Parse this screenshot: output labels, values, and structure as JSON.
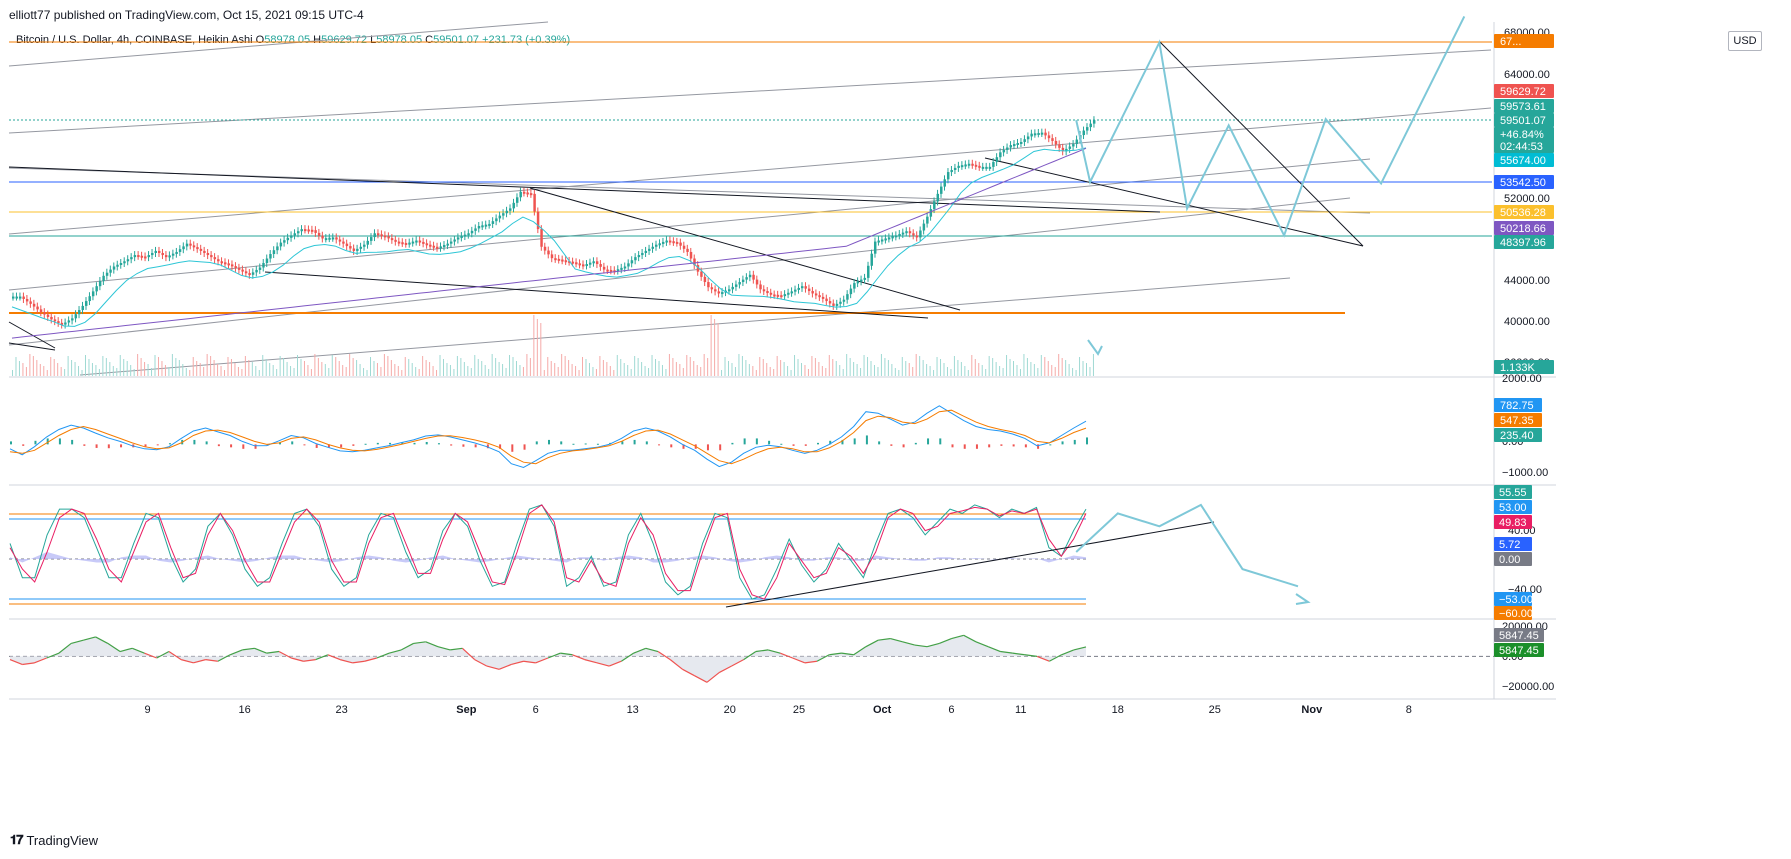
{
  "header": {
    "publisher": "elliott77 published on TradingView.com, Oct 15, 2021 09:15 UTC-4"
  },
  "legend": {
    "symbol": "Bitcoin / U.S. Dollar, 4h, COINBASE, Heikin Ashi",
    "o_label": "O",
    "o": "58978.05",
    "h_label": "H",
    "h": "59629.72",
    "l_label": "L",
    "l": "58978.05",
    "c_label": "C",
    "c": "59501.07",
    "change": "+231.73 (+0.39%)"
  },
  "currency_button": "USD",
  "footer": {
    "brand": "TradingView"
  },
  "colors": {
    "up": "#26a69a",
    "down": "#ef5350",
    "path": "#7ec8d8",
    "ma_cyan": "#2ec6d6",
    "ma_purple": "#7e57c2",
    "orange": "#f57c00",
    "blue": "#2962ff"
  },
  "chart_data": {
    "type": "candlestick",
    "x_axis_labels": [
      "9",
      "16",
      "23",
      "Sep",
      "6",
      "13",
      "20",
      "25",
      "Oct",
      "6",
      "11",
      "18",
      "25",
      "Nov",
      "8"
    ],
    "price_axis_ticks": [
      "68000.00",
      "64000.00",
      "52000.00",
      "44000.00",
      "40000.00",
      "36000.00"
    ],
    "price_labels": [
      {
        "text": "67...",
        "color": "#f57c00"
      },
      {
        "text": "59629.72",
        "color": "#ef5350"
      },
      {
        "text": "59573.61",
        "color": "#26a69a"
      },
      {
        "text": "59501.07",
        "color": "#26a69a"
      },
      {
        "text": "+46.84%",
        "color": "#26a69a"
      },
      {
        "text": "02:44:53",
        "color": "#26a69a"
      },
      {
        "text": "55674.00",
        "color": "#00bcd4"
      },
      {
        "text": "53542.50",
        "color": "#2962ff"
      },
      {
        "text": "50536.28",
        "color": "#fbc02d"
      },
      {
        "text": "50218.66",
        "color": "#7e57c2"
      },
      {
        "text": "48397.96",
        "color": "#26a69a"
      },
      {
        "text": "1.133K",
        "color": "#26a69a"
      }
    ],
    "price_series": [
      42.5,
      41.8,
      41.0,
      40.3,
      39.8,
      40.4,
      41.6,
      43.0,
      44.5,
      45.4,
      45.9,
      46.5,
      46.3,
      46.9,
      46.3,
      46.8,
      47.6,
      47.1,
      46.5,
      45.9,
      45.6,
      45.1,
      44.6,
      45.3,
      46.6,
      47.7,
      48.4,
      49.0,
      48.9,
      48.1,
      48.2,
      47.6,
      46.9,
      47.5,
      48.6,
      48.3,
      47.8,
      47.6,
      47.9,
      47.5,
      47.2,
      47.6,
      48.2,
      48.6,
      49.3,
      49.5,
      50.3,
      51.0,
      52.6,
      52.4,
      47.3,
      46.2,
      46.0,
      45.8,
      45.5,
      45.9,
      45.1,
      45.0,
      45.4,
      46.3,
      46.9,
      47.5,
      47.9,
      47.7,
      46.8,
      44.9,
      43.4,
      42.8,
      43.2,
      43.9,
      44.6,
      43.2,
      42.7,
      42.6,
      43.0,
      43.5,
      42.8,
      42.3,
      41.6,
      42.2,
      43.8,
      44.3,
      47.8,
      48.1,
      48.4,
      48.8,
      48.2,
      50.2,
      52.4,
      54.5,
      55.1,
      55.3,
      55.0,
      55.0,
      56.4,
      57.1,
      57.4,
      58.2,
      58.3,
      57.5,
      56.5,
      57.2,
      58.5,
      59.5
    ],
    "forecast_path_price": [
      {
        "t": "2021-10-15",
        "p": 59501
      },
      {
        "t": "2021-10-16",
        "p": 53542
      },
      {
        "t": "2021-10-21",
        "p": 67000
      },
      {
        "t": "2021-10-23",
        "p": 51000
      },
      {
        "t": "2021-10-26",
        "p": 59000
      },
      {
        "t": "2021-10-30",
        "p": 48400
      },
      {
        "t": "2021-11-02",
        "p": 59600
      },
      {
        "t": "2021-11-06",
        "p": 53400
      },
      {
        "t": "2021-11-12",
        "p": 69500
      }
    ],
    "macd": {
      "axis_ticks": [
        "2000.00",
        "0.00",
        "−1000.00"
      ],
      "labels": [
        {
          "text": "782.75",
          "color": "#2196f3"
        },
        {
          "text": "547.35",
          "color": "#f57c00"
        },
        {
          "text": "235.40",
          "color": "#26a69a"
        }
      ],
      "macd_line": [
        -150,
        -350,
        -80,
        250,
        500,
        650,
        550,
        380,
        220,
        100,
        -50,
        -150,
        -180,
        -80,
        200,
        450,
        550,
        420,
        300,
        100,
        -50,
        -40,
        120,
        300,
        220,
        30,
        -100,
        -220,
        -250,
        -200,
        -120,
        -40,
        60,
        150,
        280,
        320,
        250,
        150,
        50,
        -80,
        -250,
        -650,
        -780,
        -550,
        -300,
        -200,
        -200,
        -150,
        -100,
        0,
        200,
        450,
        550,
        450,
        250,
        0,
        -200,
        -500,
        -750,
        -600,
        -300,
        -100,
        -30,
        -80,
        -200,
        -300,
        -200,
        0,
        250,
        600,
        1100,
        1050,
        850,
        650,
        750,
        1050,
        1300,
        1050,
        800,
        600,
        500,
        450,
        350,
        200,
        -50,
        50,
        300,
        550,
        780
      ],
      "signal_line": [
        -250,
        -300,
        -200,
        50,
        300,
        500,
        600,
        500,
        350,
        200,
        50,
        -80,
        -150,
        -120,
        50,
        300,
        450,
        480,
        400,
        250,
        100,
        0,
        50,
        200,
        250,
        150,
        0,
        -120,
        -200,
        -220,
        -170,
        -90,
        0,
        100,
        200,
        280,
        290,
        230,
        150,
        50,
        -100,
        -400,
        -600,
        -650,
        -450,
        -300,
        -220,
        -180,
        -120,
        -50,
        100,
        300,
        450,
        480,
        350,
        150,
        -50,
        -300,
        -550,
        -650,
        -500,
        -300,
        -150,
        -100,
        -150,
        -250,
        -250,
        -120,
        100,
        400,
        800,
        950,
        900,
        750,
        700,
        850,
        1100,
        1150,
        950,
        750,
        600,
        500,
        420,
        300,
        100,
        50,
        200,
        400,
        547
      ]
    },
    "stoch_rsi": {
      "axis_ticks": [
        "40.00",
        "0.00",
        "−40.00"
      ],
      "labels": [
        {
          "text": "55.55",
          "color": "#26a69a"
        },
        {
          "text": "53.00",
          "color": "#2196f3"
        },
        {
          "text": "49.83",
          "color": "#e91e63"
        },
        {
          "text": "5.72",
          "color": "#2962ff"
        },
        {
          "text": "0.00",
          "color": "#787b86"
        },
        {
          "text": "−53.00",
          "color": "#2196f3"
        },
        {
          "text": "−60.00",
          "color": "#f57c00"
        }
      ],
      "k_line": [
        10,
        -30,
        -30,
        20,
        50,
        50,
        40,
        5,
        -30,
        -30,
        10,
        45,
        40,
        -5,
        -35,
        -20,
        30,
        45,
        20,
        -20,
        -40,
        -30,
        10,
        45,
        50,
        30,
        -20,
        -40,
        -30,
        20,
        45,
        40,
        0,
        -30,
        -20,
        25,
        45,
        30,
        -10,
        -40,
        -35,
        10,
        50,
        55,
        30,
        -40,
        -30,
        -5,
        -40,
        -35,
        20,
        45,
        10,
        -35,
        -50,
        -40,
        10,
        45,
        40,
        -30,
        -55,
        -50,
        -20,
        15,
        -15,
        -35,
        -20,
        10,
        -10,
        -30,
        10,
        45,
        50,
        40,
        20,
        35,
        50,
        45,
        55,
        50,
        40,
        50,
        45,
        52,
        5,
        -5,
        25,
        50
      ],
      "d_line": [
        5,
        -20,
        -35,
        0,
        40,
        50,
        45,
        15,
        -20,
        -35,
        0,
        35,
        45,
        5,
        -30,
        -25,
        20,
        45,
        25,
        -10,
        -35,
        -35,
        0,
        35,
        50,
        35,
        -10,
        -35,
        -35,
        10,
        40,
        45,
        10,
        -25,
        -25,
        15,
        45,
        35,
        0,
        -35,
        -38,
        0,
        45,
        55,
        35,
        -30,
        -35,
        -10,
        -35,
        -40,
        10,
        40,
        20,
        -25,
        -45,
        -45,
        0,
        40,
        45,
        -20,
        -50,
        -55,
        -30,
        10,
        -10,
        -30,
        -25,
        5,
        -5,
        -25,
        0,
        40,
        50,
        45,
        25,
        30,
        45,
        48,
        52,
        50,
        42,
        48,
        45,
        50,
        15,
        -5,
        15,
        45
      ],
      "forecast_path": [
        {
          "t": "2021-10-15",
          "v": 0
        },
        {
          "t": "2021-10-18",
          "v": 45
        },
        {
          "t": "2021-10-21",
          "v": 30
        },
        {
          "t": "2021-10-24",
          "v": 55
        },
        {
          "t": "2021-10-27",
          "v": -20
        },
        {
          "t": "2021-10-31",
          "v": -40
        }
      ]
    },
    "osc": {
      "axis_ticks": [
        "20000.00",
        "0.00",
        "−20000.00"
      ],
      "labels": [
        {
          "text": "5847.45",
          "color": "#787b86"
        },
        {
          "text": "5847.45",
          "color": "#1b8f2a"
        }
      ],
      "values": [
        -2000,
        -5000,
        -4000,
        -1000,
        2000,
        8000,
        10000,
        12000,
        8000,
        3000,
        5000,
        2000,
        -1000,
        3000,
        -2000,
        -4000,
        -2000,
        -3000,
        1000,
        4000,
        5000,
        2000,
        3000,
        -1000,
        -3000,
        -2000,
        1000,
        -2000,
        -4000,
        -3000,
        -1000,
        2000,
        4000,
        8000,
        9000,
        6000,
        4000,
        5000,
        -2000,
        -6000,
        -8000,
        -5000,
        -3000,
        -4000,
        -1000,
        2000,
        1000,
        -2000,
        -4000,
        -6000,
        -3000,
        2000,
        5000,
        3000,
        -2000,
        -8000,
        -12000,
        -16000,
        -10000,
        -6000,
        -2000,
        3000,
        4000,
        2000,
        -1000,
        -4000,
        -3000,
        1000,
        2000,
        1000,
        6000,
        10000,
        11000,
        9000,
        7000,
        6000,
        8000,
        11000,
        13000,
        9000,
        6000,
        3000,
        2000,
        1000,
        0,
        -3000,
        1000,
        4000,
        5847
      ]
    }
  }
}
